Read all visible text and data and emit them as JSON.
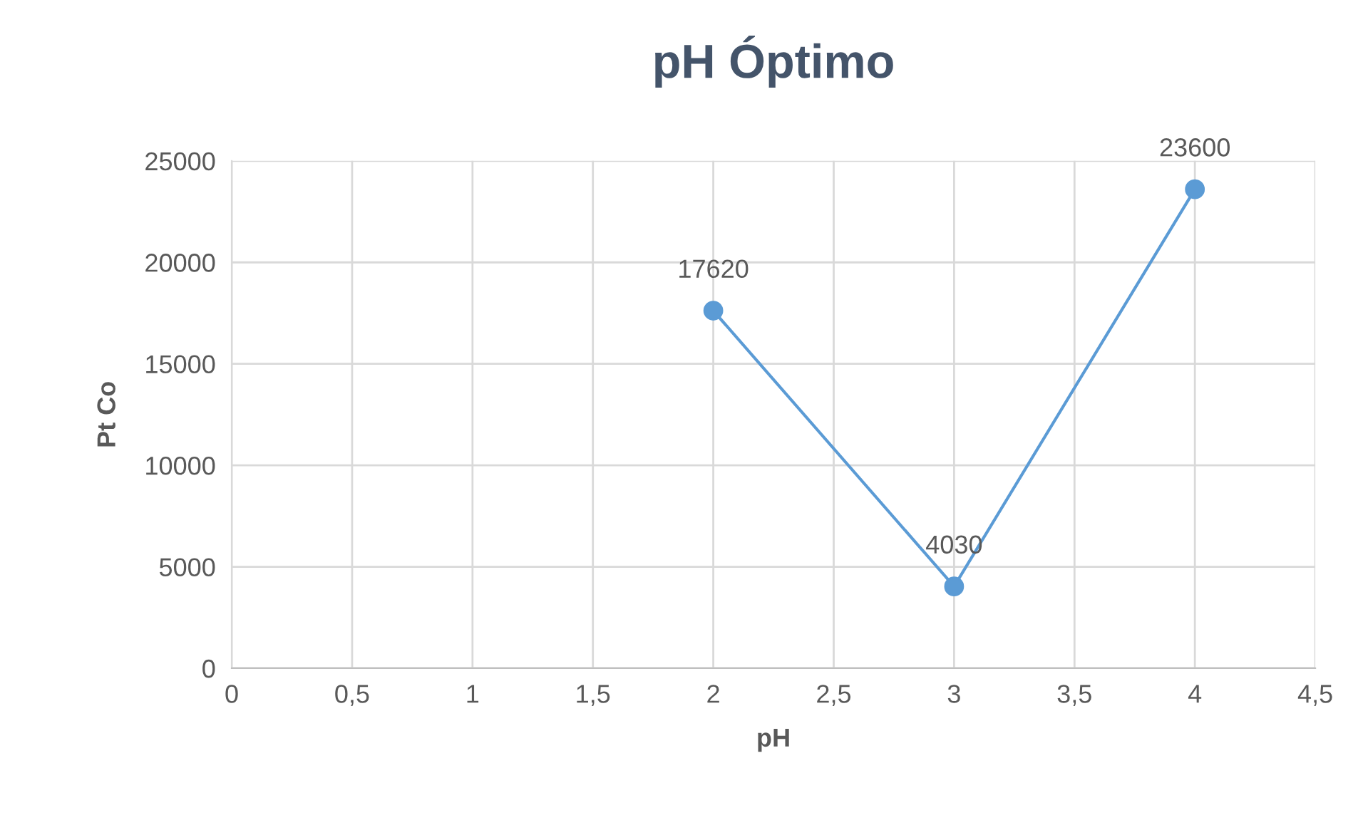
{
  "chart_data": {
    "type": "line",
    "title": "pH Óptimo",
    "xlabel": "pH",
    "ylabel": "Pt Co",
    "x": [
      2,
      3,
      4
    ],
    "series": [
      {
        "color": "#5b9bd5",
        "values": [
          17620,
          4030,
          23600
        ]
      }
    ],
    "xlim": [
      0,
      4.5
    ],
    "xticks": [
      0,
      {
        "value": 0.5,
        "label": "0,5"
      },
      1,
      {
        "value": 1.5,
        "label": "1,5"
      },
      2,
      {
        "value": 2.5,
        "label": "2,5"
      },
      3,
      {
        "value": 3.5,
        "label": "3,5"
      },
      4,
      {
        "value": 4.5,
        "label": "4,5"
      }
    ],
    "ylim": [
      0,
      25000
    ],
    "yticks": [
      0,
      5000,
      10000,
      15000,
      20000,
      25000
    ],
    "grid": true,
    "marker": "circle",
    "line_style": "solid",
    "data_labels": true
  }
}
